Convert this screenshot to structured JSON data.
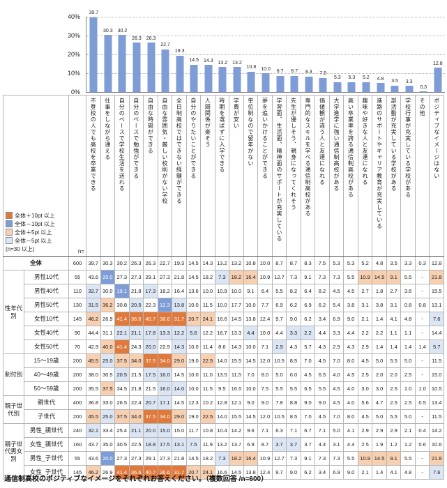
{
  "title_caption": "通信制高校のポジティブなイメージをそれぞれお答えください。（複数回答 /n=600）",
  "n_header": "n=",
  "colors": {
    "bar": "#7e9cd6",
    "plus10": "#e0793c",
    "plus5": "#f7cfb1",
    "minus10": "#7e9cd6",
    "minus5": "#dce5f4"
  },
  "legend": {
    "items": [
      {
        "label": "全体＋10pt 以上",
        "key": "plus10"
      },
      {
        "label": "全体－10pt 以上",
        "key": "minus10"
      },
      {
        "label": "全体＋5pt 以上",
        "key": "plus5"
      },
      {
        "label": "全体－5pt 以上",
        "key": "minus5"
      }
    ],
    "note": "(n=30 以上)"
  },
  "chart_data": [
    {
      "type": "bar",
      "title": "",
      "categories": [
        "不登校の人でも高校を卒業できる",
        "仕事をしながら通える",
        "自分のペースで学校生活を送れる",
        "自分のペースで勉強ができる",
        "自由な時間ができる",
        "自由な雰囲気・厳しい校則がない学校",
        "全日制高校ではできない経験ができる",
        "自分のやりたいことができる",
        "人間関係が楽そう",
        "時期を選ばずに入学できる",
        "学費が安い",
        "単位制なので留年がない",
        "夢を追いかけることができる",
        "学習面、生活面、精神面のサポートが充実している",
        "先生が優しそう、親身になってくれそう",
        "専門的なスキルを学べる通信制高校がある",
        "価値観が違う人と友達になれる",
        "大学進学に強い通信制高校がある",
        "高い卒業率を誇る通信制高校がある",
        "趣味や好きな人と友達になれる",
        "進路のサポートやキャリア教育が充実している",
        "部活動が充実している学校がある",
        "学校行事が充実している学校がある",
        "その他",
        "ポジティブなイメージはない"
      ],
      "values": [
        39.7,
        30.3,
        30.2,
        26.3,
        26.3,
        22.7,
        19.3,
        14.5,
        14.3,
        13.2,
        13.2,
        10.8,
        10.0,
        8.7,
        8.7,
        8.3,
        7.5,
        5.3,
        5.3,
        5.2,
        4.8,
        3.5,
        3.3,
        0.3,
        12.8
      ],
      "ylim": [
        0,
        40
      ],
      "yticks": [
        0,
        10,
        20,
        30,
        40
      ],
      "xlabel": "",
      "ylabel": "",
      "grid": "dotted-horizontal",
      "legend_position": "none"
    },
    {
      "type": "table",
      "columns_same_as_bar_categories": true,
      "highlight_rule": {
        "plus10": 10,
        "plus5": 5,
        "minus10": -10,
        "minus5": -5,
        "base_row": "全体"
      },
      "row_groups": [
        {
          "group": "",
          "rows": [
            {
              "label": "全体",
              "n": 600,
              "values": [
                39.7,
                30.3,
                30.2,
                26.3,
                26.3,
                22.7,
                19.3,
                14.5,
                14.3,
                13.2,
                13.2,
                10.8,
                10.0,
                8.7,
                8.7,
                8.3,
                7.5,
                5.3,
                5.3,
                5.2,
                4.8,
                3.5,
                3.3,
                0.3,
                12.8
              ]
            }
          ]
        },
        {
          "group": "性年代別",
          "rows": [
            {
              "label": "男性10代",
              "n": 55,
              "values": [
                43.6,
                20.0,
                27.3,
                27.3,
                29.1,
                27.3,
                21.8,
                14.5,
                18.2,
                7.3,
                18.2,
                16.4,
                10.9,
                12.7,
                7.3,
                9.1,
                7.3,
                7.3,
                5.5,
                10.9,
                14.5,
                9.1,
                5.5,
                "-",
                21.8
              ]
            },
            {
              "label": "男性40代",
              "n": 110,
              "values": [
                32.7,
                30.0,
                19.1,
                21.8,
                17.3,
                18.2,
                16.4,
                13.6,
                10.0,
                10.9,
                10.0,
                9.1,
                6.4,
                5.5,
                8.2,
                6.4,
                8.2,
                4.5,
                4.5,
                2.7,
                1.8,
                2.7,
                3.6,
                "-",
                15.5
              ]
            },
            {
              "label": "男性50代",
              "n": 130,
              "values": [
                31.5,
                36.2,
                30.8,
                20.5,
                22.3,
                12.3,
                13.8,
                10.0,
                11.5,
                10.0,
                17.7,
                10.0,
                7.7,
                6.9,
                6.2,
                6.9,
                6.2,
                5.4,
                3.8,
                3.1,
                3.8,
                3.1,
                0.8,
                0.8,
                13.1
              ]
            },
            {
              "label": "女性10代",
              "n": 145,
              "values": [
                46.2,
                26.9,
                41.4,
                36.6,
                40.7,
                36.6,
                31.7,
                20.7,
                24.1,
                16.6,
                14.5,
                13.8,
                12.4,
                9.7,
                9.0,
                6.2,
                3.4,
                6.9,
                9.0,
                2.1,
                1.4,
                4.1,
                4.8,
                "-",
                7.6
              ]
            },
            {
              "label": "女性40代",
              "n": 90,
              "values": [
                44.4,
                31.1,
                22.1,
                21.1,
                17.8,
                13.3,
                12.2,
                5.6,
                12.2,
                16.7,
                13.3,
                4.4,
                10.0,
                4.4,
                3.3,
                2.2,
                4.4,
                3.3,
                4.4,
                2.2,
                2.2,
                1.1,
                1.1,
                "-",
                14.4
              ]
            },
            {
              "label": "女性50代",
              "n": 70,
              "values": [
                42.9,
                40.0,
                41.4,
                24.3,
                20.0,
                22.9,
                14.3,
                10.0,
                11.4,
                8.6,
                14.3,
                10.0,
                7.1,
                2.9,
                4.3,
                5.7,
                4.3,
                2.9,
                4.3,
                2.9,
                1.4,
                1.4,
                1.4,
                1.4,
                5.7
              ]
            }
          ]
        },
        {
          "group": "割付別",
          "rows": [
            {
              "label": "15～19歳",
              "n": 200,
              "values": [
                45.5,
                25.0,
                37.5,
                34.0,
                37.5,
                34.0,
                29.0,
                19.0,
                22.5,
                14.0,
                15.5,
                14.5,
                12.0,
                10.5,
                8.5,
                7.0,
                4.5,
                7.0,
                8.0,
                4.5,
                5.0,
                5.5,
                5.0,
                "-",
                11.5
              ]
            },
            {
              "label": "40～49歳",
              "n": 200,
              "values": [
                38.0,
                30.5,
                20.5,
                21.5,
                17.5,
                16.0,
                14.5,
                10.0,
                11.0,
                13.5,
                11.5,
                7.0,
                8.0,
                5.0,
                6.0,
                4.5,
                6.5,
                4.0,
                4.5,
                2.5,
                2.0,
                2.0,
                2.5,
                "-",
                15.0
              ]
            },
            {
              "label": "50～59歳",
              "n": 200,
              "values": [
                35.5,
                37.5,
                34.5,
                21.8,
                21.5,
                16.0,
                14.0,
                10.0,
                11.5,
                9.5,
                16.5,
                10.0,
                7.5,
                5.5,
                5.5,
                6.5,
                5.5,
                4.5,
                4.0,
                3.0,
                3.0,
                2.5,
                1.0,
                1.0,
                10.5
              ]
            }
          ]
        },
        {
          "group": "親子世代別",
          "rows": [
            {
              "label": "親世代",
              "n": 400,
              "values": [
                36.8,
                33.0,
                26.5,
                22.4,
                20.7,
                17.1,
                14.5,
                12.3,
                10.2,
                12.8,
                12.1,
                9.0,
                9.0,
                7.8,
                8.8,
                9.0,
                9.0,
                4.5,
                4.0,
                5.6,
                4.7,
                2.5,
                2.5,
                0.5,
                13.4
              ]
            },
            {
              "label": "子世代",
              "n": 200,
              "values": [
                45.5,
                25.0,
                37.5,
                34.0,
                37.5,
                34.0,
                29.0,
                19.0,
                22.5,
                14.0,
                15.5,
                14.5,
                12.0,
                10.5,
                8.5,
                7.0,
                4.5,
                7.0,
                8.0,
                4.5,
                5.0,
                5.5,
                5.0,
                "-",
                11.5
              ]
            }
          ]
        },
        {
          "group": "親子世代男女別",
          "rows": [
            {
              "label": "男性_親世代",
              "n": 240,
              "values": [
                32.1,
                33.4,
                25.4,
                21.1,
                20.0,
                15.0,
                15.0,
                11.7,
                10.8,
                10.4,
                14.2,
                9.6,
                7.1,
                6.3,
                7.1,
                6.7,
                7.1,
                5.0,
                4.1,
                2.9,
                2.9,
                2.9,
                2.1,
                0.4,
                14.2
              ]
            },
            {
              "label": "女性_親世代",
              "n": 160,
              "values": [
                43.7,
                35.0,
                30.5,
                22.5,
                18.8,
                17.5,
                13.1,
                7.5,
                11.9,
                13.2,
                13.7,
                6.9,
                8.7,
                3.7,
                3.7,
                3.7,
                4.4,
                3.1,
                4.4,
                2.5,
                1.9,
                1.2,
                1.2,
                0.6,
                10.6
              ]
            },
            {
              "label": "男性_子世代",
              "n": 55,
              "values": [
                43.6,
                20.0,
                27.3,
                27.3,
                29.1,
                27.3,
                21.8,
                14.5,
                18.2,
                7.3,
                18.2,
                16.4,
                10.9,
                12.7,
                7.3,
                9.1,
                7.3,
                7.3,
                5.5,
                10.9,
                14.5,
                9.1,
                5.5,
                "-",
                21.8
              ]
            },
            {
              "label": "女性_子世代",
              "n": 145,
              "values": [
                46.2,
                26.9,
                41.4,
                36.6,
                40.7,
                36.6,
                31.7,
                20.7,
                24.1,
                16.6,
                14.5,
                13.8,
                12.4,
                9.7,
                9.0,
                6.2,
                3.4,
                6.9,
                9.0,
                2.1,
                1.4,
                4.1,
                4.8,
                "-",
                7.6
              ]
            }
          ]
        }
      ]
    }
  ]
}
